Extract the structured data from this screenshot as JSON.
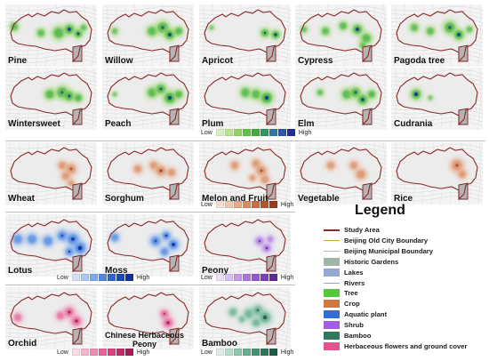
{
  "panels": [
    {
      "id": "pine",
      "label": "Pine",
      "group": "tree"
    },
    {
      "id": "willow",
      "label": "Willow",
      "group": "tree"
    },
    {
      "id": "apricot",
      "label": "Apricot",
      "group": "tree"
    },
    {
      "id": "cypress",
      "label": "Cypress",
      "group": "tree"
    },
    {
      "id": "pagoda",
      "label": "Pagoda tree",
      "group": "tree"
    },
    {
      "id": "wintersweet",
      "label": "Wintersweet",
      "group": "tree"
    },
    {
      "id": "peach",
      "label": "Peach",
      "group": "tree"
    },
    {
      "id": "plum",
      "label": "Plum",
      "group": "tree"
    },
    {
      "id": "elm",
      "label": "Elm",
      "group": "tree"
    },
    {
      "id": "cudrania",
      "label": "Cudrania",
      "group": "tree"
    },
    {
      "id": "wheat",
      "label": "Wheat",
      "group": "crop"
    },
    {
      "id": "sorghum",
      "label": "Sorghum",
      "group": "crop"
    },
    {
      "id": "melon",
      "label": "Melon and Fruit",
      "group": "crop"
    },
    {
      "id": "vegetable",
      "label": "Vegetable",
      "group": "crop"
    },
    {
      "id": "rice",
      "label": "Rice",
      "group": "crop"
    },
    {
      "id": "lotus",
      "label": "Lotus",
      "group": "aquatic"
    },
    {
      "id": "moss",
      "label": "Moss",
      "group": "aquatic"
    },
    {
      "id": "peony",
      "label": "Peony",
      "group": "shrub"
    },
    {
      "id": "orchid",
      "label": "Orchid",
      "group": "herb"
    },
    {
      "id": "chinese_peony",
      "label_line1": "Chinese Herbaceous",
      "label_line2": "Peony",
      "group": "herb"
    },
    {
      "id": "bamboo",
      "label": "Bamboo",
      "group": "bamboo"
    }
  ],
  "color_scales": {
    "low_label": "Low",
    "high_label": "High",
    "tree": [
      "#d9f2c2",
      "#b8e68f",
      "#8fd65f",
      "#5ec43c",
      "#3caf3a",
      "#2c9a5c",
      "#2a7fa0",
      "#2a55b0",
      "#1d2f9a"
    ],
    "crop": [
      "#f6e0d2",
      "#efc7ac",
      "#e6a985",
      "#d98c63",
      "#c96f45",
      "#b55430",
      "#9a3d1f"
    ],
    "aquatic": [
      "#cfe0f7",
      "#a8c8f2",
      "#7aa9ec",
      "#4f88e2",
      "#2d66d3",
      "#1c48b8",
      "#13309a"
    ],
    "shrub": [
      "#ecdcf7",
      "#dabdf1",
      "#c599ea",
      "#ad74e0",
      "#9656d2",
      "#7b3db8",
      "#5f2a96"
    ],
    "herb": [
      "#fbd9e6",
      "#f6b3cd",
      "#ef8bb2",
      "#e66398",
      "#d8407e",
      "#c42a68",
      "#a31d54"
    ],
    "bamboo": [
      "#dcefe6",
      "#b7ddcb",
      "#8ec7ad",
      "#64ae8f",
      "#429273",
      "#2b765b",
      "#1d5b45"
    ]
  },
  "legend": {
    "title": "Legend",
    "items": [
      {
        "label": "Study Area",
        "symbol": "line",
        "color": "#8b2a2a"
      },
      {
        "label": "Beijing Old City Boundary",
        "symbol": "line",
        "color": "#d8a13a"
      },
      {
        "label": "Beijing Municipal Boundary",
        "symbol": "line",
        "color": "#b9b9b9"
      },
      {
        "label": "Historic Gardens",
        "symbol": "box",
        "color": "#9fb5a8"
      },
      {
        "label": "Lakes",
        "symbol": "box",
        "color": "#93a9cf"
      },
      {
        "label": "Rivers",
        "symbol": "line",
        "color": "#8aa8d8"
      },
      {
        "label": "Tree",
        "symbol": "box",
        "color": "#52c93a"
      },
      {
        "label": "Crop",
        "symbol": "box",
        "color": "#d2773e"
      },
      {
        "label": "Aquatic plant",
        "symbol": "box",
        "color": "#2f6fd6"
      },
      {
        "label": "Shrub",
        "symbol": "box",
        "color": "#a25de0"
      },
      {
        "label": "Bamboo",
        "symbol": "box",
        "color": "#2f7a5a"
      },
      {
        "label": "Herbaceous flowers and ground cover",
        "symbol": "box",
        "color": "#e0558f"
      }
    ]
  }
}
